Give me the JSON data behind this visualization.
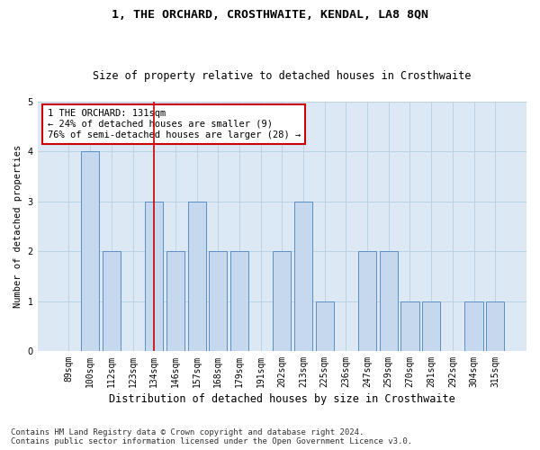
{
  "title": "1, THE ORCHARD, CROSTHWAITE, KENDAL, LA8 8QN",
  "subtitle": "Size of property relative to detached houses in Crosthwaite",
  "xlabel": "Distribution of detached houses by size in Crosthwaite",
  "ylabel": "Number of detached properties",
  "categories": [
    "89sqm",
    "100sqm",
    "112sqm",
    "123sqm",
    "134sqm",
    "146sqm",
    "157sqm",
    "168sqm",
    "179sqm",
    "191sqm",
    "202sqm",
    "213sqm",
    "225sqm",
    "236sqm",
    "247sqm",
    "259sqm",
    "270sqm",
    "281sqm",
    "292sqm",
    "304sqm",
    "315sqm"
  ],
  "values": [
    0,
    4,
    2,
    0,
    3,
    2,
    3,
    2,
    2,
    0,
    2,
    3,
    1,
    0,
    2,
    2,
    1,
    1,
    0,
    1,
    1
  ],
  "bar_color": "#c5d8ed",
  "bar_edge_color": "#5a8fc2",
  "reference_line_index": 4,
  "reference_line_color": "#cc0000",
  "annotation_box_text": "1 THE ORCHARD: 131sqm\n← 24% of detached houses are smaller (9)\n76% of semi-detached houses are larger (28) →",
  "annotation_box_edge_color": "#cc0000",
  "ylim": [
    0,
    5
  ],
  "yticks": [
    0,
    1,
    2,
    3,
    4,
    5
  ],
  "background_color": "#ffffff",
  "plot_bg_color": "#dce9f5",
  "grid_color": "#b8cfe0",
  "footnote": "Contains HM Land Registry data © Crown copyright and database right 2024.\nContains public sector information licensed under the Open Government Licence v3.0.",
  "title_fontsize": 9.5,
  "subtitle_fontsize": 8.5,
  "xlabel_fontsize": 8.5,
  "ylabel_fontsize": 7.5,
  "tick_fontsize": 7,
  "annotation_fontsize": 7.5,
  "footnote_fontsize": 6.5
}
